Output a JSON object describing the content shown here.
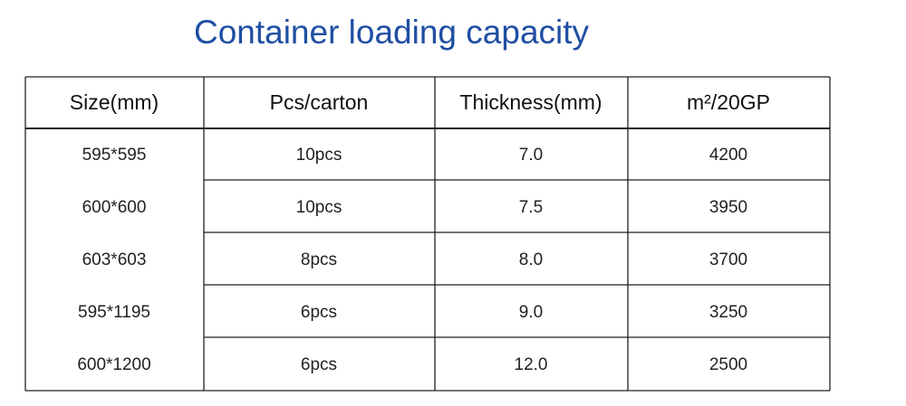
{
  "title": "Container loading capacity",
  "table": {
    "header": [
      "Size(mm)",
      "Pcs/carton",
      "Thickness(mm)",
      "m²/20GP"
    ],
    "rows": [
      [
        "595*595",
        "10pcs",
        "7.0",
        "4200"
      ],
      [
        "600*600",
        "10pcs",
        "7.5",
        "3950"
      ],
      [
        "603*603",
        "8pcs",
        "8.0",
        "3700"
      ],
      [
        "595*1195",
        "6pcs",
        "9.0",
        "3250"
      ],
      [
        "600*1200",
        "6pcs",
        "12.0",
        "2500"
      ]
    ]
  }
}
